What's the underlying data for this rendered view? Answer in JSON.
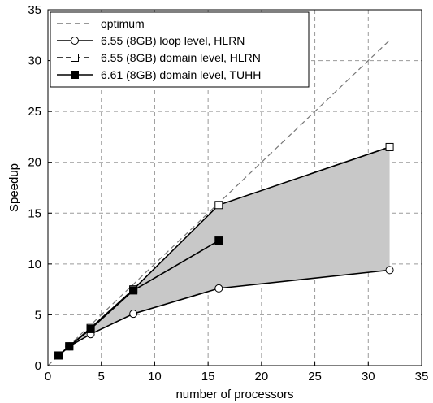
{
  "chart_data": {
    "type": "line",
    "xlabel": "number of processors",
    "ylabel": "Speedup",
    "xlim": [
      0,
      35
    ],
    "ylim": [
      0,
      35
    ],
    "xticks": [
      "0",
      "5",
      "10",
      "15",
      "20",
      "25",
      "30",
      "35"
    ],
    "yticks": [
      "0",
      "5",
      "10",
      "15",
      "20",
      "25",
      "30",
      "35"
    ],
    "grid": true,
    "legend_position": "top-left",
    "shaded_region": {
      "between": [
        "6.55 (8GB) loop level, HLRN",
        "6.55 (8GB) domain level, HLRN"
      ],
      "color": "#c8c8c8"
    },
    "series": [
      {
        "name": "optimum",
        "style": "dashed",
        "color": "#777777",
        "x": [
          0,
          32
        ],
        "y": [
          0,
          32
        ]
      },
      {
        "name": "6.55 (8GB) loop level, HLRN",
        "style": "solid",
        "marker": "open-circle",
        "color": "#000000",
        "x": [
          1,
          2,
          4,
          8,
          16,
          32
        ],
        "y": [
          1.0,
          1.9,
          3.1,
          5.1,
          7.6,
          9.4
        ]
      },
      {
        "name": "6.55 (8GB) domain level, HLRN",
        "style": "solid",
        "marker": "open-square",
        "color": "#000000",
        "x": [
          1,
          2,
          4,
          8,
          16,
          32
        ],
        "y": [
          1.0,
          1.9,
          3.7,
          7.5,
          15.8,
          21.5
        ]
      },
      {
        "name": "6.61 (8GB) domain level, TUHH",
        "style": "solid",
        "marker": "filled-square",
        "color": "#000000",
        "x": [
          1,
          2,
          4,
          8,
          16
        ],
        "y": [
          1.0,
          1.9,
          3.6,
          7.4,
          12.3
        ]
      }
    ]
  }
}
